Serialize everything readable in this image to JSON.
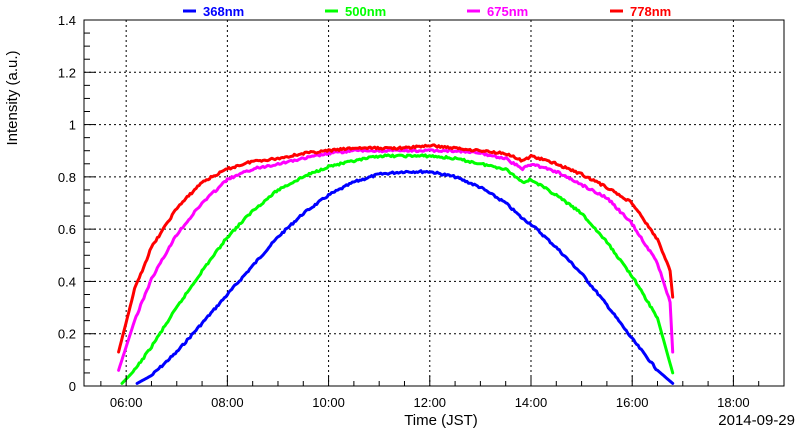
{
  "chart_data": {
    "type": "line",
    "xlabel": "Time (JST)",
    "ylabel": "Intensity (a.u.)",
    "date_label": "2014-09-29",
    "xlim": [
      "05:10",
      "19:00"
    ],
    "ylim": [
      0,
      1.4
    ],
    "x_ticks": [
      "06:00",
      "08:00",
      "10:00",
      "12:00",
      "14:00",
      "16:00",
      "18:00"
    ],
    "y_ticks": [
      "0",
      "0.2",
      "0.4",
      "0.6",
      "0.8",
      "1",
      "1.2",
      "1.4"
    ],
    "grid": true,
    "legend_position": "top",
    "series": [
      {
        "name": "368nm",
        "color": "#0000ff",
        "points": [
          [
            "06:13",
            0.01
          ],
          [
            "06:30",
            0.04
          ],
          [
            "07:00",
            0.13
          ],
          [
            "07:30",
            0.24
          ],
          [
            "08:00",
            0.35
          ],
          [
            "08:30",
            0.46
          ],
          [
            "09:00",
            0.57
          ],
          [
            "09:30",
            0.66
          ],
          [
            "10:00",
            0.73
          ],
          [
            "10:30",
            0.78
          ],
          [
            "11:00",
            0.81
          ],
          [
            "11:30",
            0.82
          ],
          [
            "12:00",
            0.82
          ],
          [
            "12:30",
            0.8
          ],
          [
            "13:00",
            0.76
          ],
          [
            "13:30",
            0.7
          ],
          [
            "13:50",
            0.64
          ],
          [
            "14:00",
            0.62
          ],
          [
            "14:30",
            0.53
          ],
          [
            "15:00",
            0.43
          ],
          [
            "15:30",
            0.31
          ],
          [
            "16:00",
            0.18
          ],
          [
            "16:30",
            0.06
          ],
          [
            "16:48",
            0.01
          ]
        ]
      },
      {
        "name": "500nm",
        "color": "#00ff00",
        "points": [
          [
            "05:55",
            0.01
          ],
          [
            "06:10",
            0.06
          ],
          [
            "06:30",
            0.15
          ],
          [
            "07:00",
            0.3
          ],
          [
            "07:30",
            0.44
          ],
          [
            "08:00",
            0.57
          ],
          [
            "08:30",
            0.67
          ],
          [
            "09:00",
            0.75
          ],
          [
            "09:30",
            0.8
          ],
          [
            "10:00",
            0.84
          ],
          [
            "10:30",
            0.86
          ],
          [
            "11:00",
            0.88
          ],
          [
            "11:30",
            0.88
          ],
          [
            "12:00",
            0.88
          ],
          [
            "12:30",
            0.87
          ],
          [
            "13:00",
            0.85
          ],
          [
            "13:30",
            0.83
          ],
          [
            "13:50",
            0.78
          ],
          [
            "14:00",
            0.79
          ],
          [
            "14:30",
            0.73
          ],
          [
            "15:00",
            0.66
          ],
          [
            "15:30",
            0.55
          ],
          [
            "16:00",
            0.42
          ],
          [
            "16:30",
            0.26
          ],
          [
            "16:48",
            0.05
          ]
        ]
      },
      {
        "name": "675nm",
        "color": "#ff00ff",
        "points": [
          [
            "05:51",
            0.06
          ],
          [
            "06:10",
            0.25
          ],
          [
            "06:30",
            0.41
          ],
          [
            "07:00",
            0.58
          ],
          [
            "07:30",
            0.7
          ],
          [
            "08:00",
            0.79
          ],
          [
            "08:30",
            0.83
          ],
          [
            "09:00",
            0.85
          ],
          [
            "09:30",
            0.87
          ],
          [
            "10:00",
            0.89
          ],
          [
            "10:30",
            0.9
          ],
          [
            "11:00",
            0.9
          ],
          [
            "11:30",
            0.9
          ],
          [
            "12:00",
            0.9
          ],
          [
            "12:30",
            0.9
          ],
          [
            "13:00",
            0.89
          ],
          [
            "13:30",
            0.87
          ],
          [
            "13:50",
            0.83
          ],
          [
            "14:00",
            0.85
          ],
          [
            "14:30",
            0.82
          ],
          [
            "15:00",
            0.77
          ],
          [
            "15:30",
            0.72
          ],
          [
            "16:00",
            0.62
          ],
          [
            "16:30",
            0.47
          ],
          [
            "16:45",
            0.32
          ],
          [
            "16:48",
            0.13
          ]
        ]
      },
      {
        "name": "778nm",
        "color": "#ff0000",
        "points": [
          [
            "05:51",
            0.13
          ],
          [
            "06:10",
            0.37
          ],
          [
            "06:30",
            0.53
          ],
          [
            "07:00",
            0.68
          ],
          [
            "07:30",
            0.78
          ],
          [
            "08:00",
            0.83
          ],
          [
            "08:30",
            0.86
          ],
          [
            "09:00",
            0.87
          ],
          [
            "09:30",
            0.89
          ],
          [
            "10:00",
            0.9
          ],
          [
            "10:30",
            0.91
          ],
          [
            "11:00",
            0.91
          ],
          [
            "11:30",
            0.91
          ],
          [
            "12:00",
            0.92
          ],
          [
            "12:30",
            0.91
          ],
          [
            "13:00",
            0.9
          ],
          [
            "13:30",
            0.89
          ],
          [
            "13:50",
            0.86
          ],
          [
            "14:00",
            0.88
          ],
          [
            "14:30",
            0.85
          ],
          [
            "15:00",
            0.81
          ],
          [
            "15:30",
            0.76
          ],
          [
            "16:00",
            0.7
          ],
          [
            "16:30",
            0.56
          ],
          [
            "16:45",
            0.44
          ],
          [
            "16:48",
            0.34
          ]
        ]
      }
    ]
  }
}
